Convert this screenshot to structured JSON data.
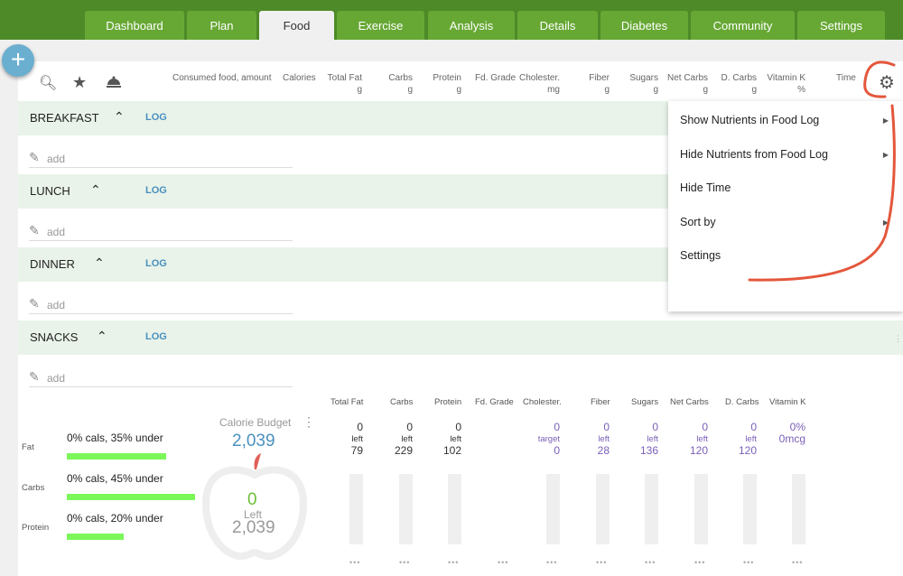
{
  "tabs": [
    "Dashboard",
    "Plan",
    "Food",
    "Exercise",
    "Analysis",
    "Details",
    "Diabetes",
    "Community",
    "Settings"
  ],
  "active_tab": "Food",
  "columns": {
    "food": "Consumed food, amount",
    "calories": "Calories",
    "fat": "Total Fat",
    "fat_u": "g",
    "carbs": "Carbs",
    "carbs_u": "g",
    "protein": "Protein",
    "protein_u": "g",
    "grade": "Fd. Grade",
    "chol": "Cholester.",
    "chol_u": "mg",
    "fiber": "Fiber",
    "fiber_u": "g",
    "sugars": "Sugars",
    "sugars_u": "g",
    "netcarbs": "Net Carbs",
    "netcarbs_u": "g",
    "dcarbs": "D. Carbs",
    "dcarbs_u": "g",
    "vitk": "Vitamin K",
    "vitk_u": "%",
    "time": "Time"
  },
  "meals": [
    {
      "name": "BREAKFAST",
      "log": "LOG",
      "add": "add"
    },
    {
      "name": "LUNCH",
      "log": "LOG",
      "add": "add"
    },
    {
      "name": "DINNER",
      "log": "LOG",
      "add": "add"
    },
    {
      "name": "SNACKS",
      "log": "LOG",
      "add": "add"
    }
  ],
  "menu": [
    "Show Nutrients in Food Log",
    "Hide Nutrients from Food Log",
    "Hide Time",
    "Sort by",
    "Settings"
  ],
  "macros": [
    {
      "label": "Fat",
      "text": "0% cals, 35% under",
      "pct": 35
    },
    {
      "label": "Carbs",
      "text": "0% cals, 45% under",
      "pct": 45
    },
    {
      "label": "Protein",
      "text": "0% cals, 20% under",
      "pct": 20
    }
  ],
  "budget": {
    "title": "Calorie Budget",
    "value": "2,039",
    "consumed": "0",
    "left_label": "Left",
    "left": "2,039"
  },
  "summary_headers": [
    "Total Fat",
    "Carbs",
    "Protein",
    "Fd. Grade",
    "Cholester.",
    "Fiber",
    "Sugars",
    "Net Carbs",
    "D. Carbs",
    "Vitamin K"
  ],
  "summary": [
    {
      "top": "0",
      "mid": "left",
      "bot": "79"
    },
    {
      "top": "0",
      "mid": "left",
      "bot": "229"
    },
    {
      "top": "0",
      "mid": "left",
      "bot": "102"
    },
    null,
    {
      "top": "0",
      "mid": "target",
      "bot": "0"
    },
    {
      "top": "0",
      "mid": "left",
      "bot": "28"
    },
    {
      "top": "0",
      "mid": "left",
      "bot": "136"
    },
    {
      "top": "0",
      "mid": "left",
      "bot": "120"
    },
    {
      "top": "0",
      "mid": "left",
      "bot": "120"
    },
    {
      "top": "0%",
      "mid": "",
      "bot": "0mcg"
    }
  ],
  "more": "•••",
  "colors": {
    "green_bar": "#4e8a28",
    "tab": "#67a834",
    "accent": "#4a90c0",
    "purple": "#7a5fb8",
    "macro_bar": "#7cf75a",
    "annotation": "#e4573c"
  }
}
